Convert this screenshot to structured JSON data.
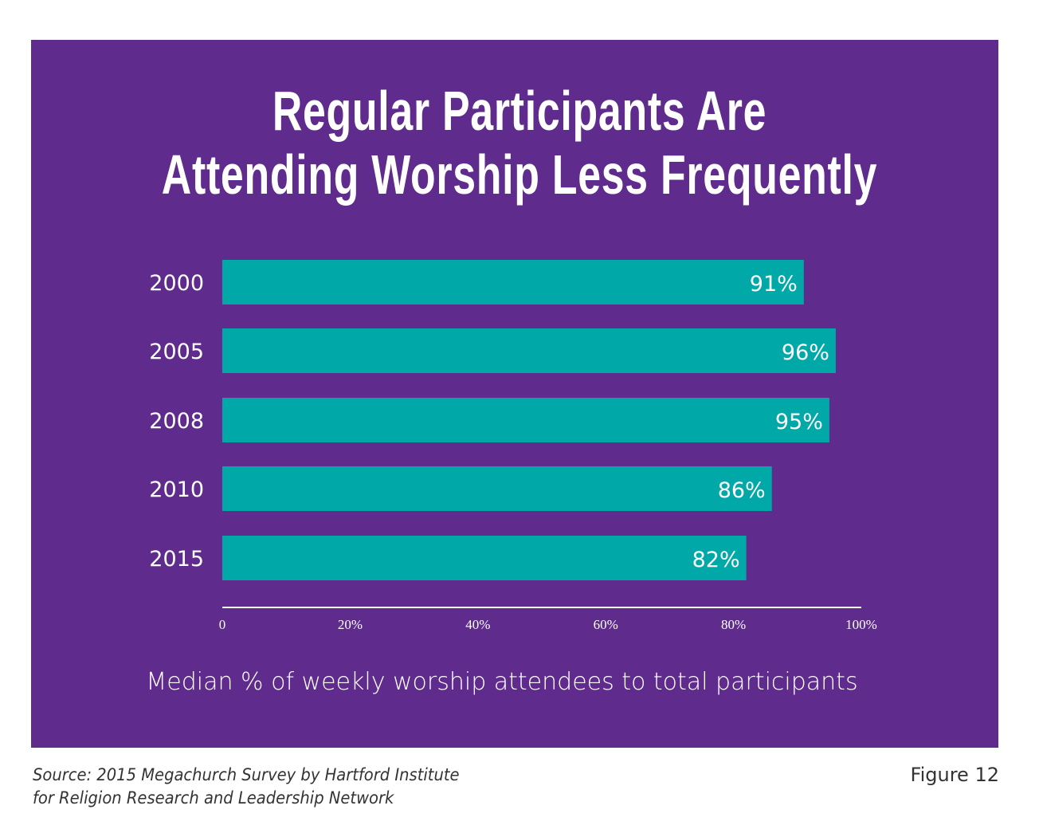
{
  "colors": {
    "background_panel": "#5f2b8c",
    "bar": "#00a8a8",
    "text_on_panel": "#ffffff",
    "footer_text": "#333333"
  },
  "chart_data": {
    "type": "bar",
    "orientation": "horizontal",
    "title": "Regular Participants Are Attending Worship Less Frequently",
    "title_lines": [
      "Regular Participants Are",
      "Attending Worship Less Frequently"
    ],
    "categories": [
      "2000",
      "2005",
      "2008",
      "2010",
      "2015"
    ],
    "values": [
      91,
      96,
      95,
      86,
      82
    ],
    "value_labels": [
      "91%",
      "96%",
      "95%",
      "86%",
      "82%"
    ],
    "unit": "%",
    "xlabel": "Median % of weekly worship attendees to total participants",
    "ylabel": "",
    "xlim": [
      0,
      100
    ],
    "x_ticks": [
      0,
      20,
      40,
      60,
      80,
      100
    ],
    "x_tick_labels": [
      "0",
      "20%",
      "40%",
      "60%",
      "80%",
      "100%"
    ],
    "grid": false,
    "legend": "none"
  },
  "footer": {
    "source_lines": [
      "Source: 2015 Megachurch Survey by Hartford Institute",
      "for Religion Research and Leadership Network"
    ],
    "figure_label": "Figure 12"
  }
}
